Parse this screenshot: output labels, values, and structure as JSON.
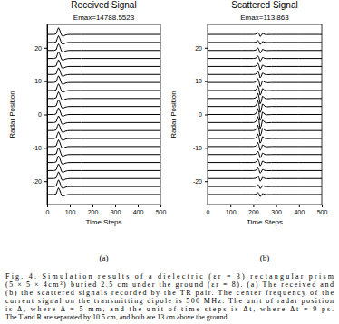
{
  "chart_data": [
    {
      "type": "line",
      "title": "Received Signal",
      "annotation": "Emax=14788.5523",
      "x_label": "Time Steps",
      "y_label": "Radar Position",
      "panel_label": "(a)",
      "color": "#000000",
      "x": [
        0,
        30,
        40,
        45,
        50,
        55,
        60,
        65,
        70,
        75,
        80,
        90,
        100,
        150,
        200,
        300,
        400,
        500
      ],
      "xlim": [
        0,
        500
      ],
      "xticks": [
        0,
        100,
        200,
        300,
        400,
        500
      ],
      "ylim": [
        -27,
        27
      ],
      "yticks": [
        -20,
        -10,
        0,
        10,
        20
      ],
      "series": [
        {
          "position": -24,
          "values": [
            0,
            0,
            0.2,
            1.2,
            2.0,
            1.4,
            0.4,
            -0.4,
            -0.6,
            -0.4,
            -0.2,
            -0.05,
            0,
            0,
            0,
            0,
            0,
            0
          ]
        },
        {
          "position": -21.6,
          "values": [
            0,
            0,
            0.2,
            1.2,
            2.0,
            1.4,
            0.4,
            -0.4,
            -0.6,
            -0.4,
            -0.2,
            -0.05,
            0,
            0,
            0,
            0,
            0,
            0
          ]
        },
        {
          "position": -19.2,
          "values": [
            0,
            0,
            0.2,
            1.2,
            2.0,
            1.4,
            0.4,
            -0.4,
            -0.6,
            -0.4,
            -0.2,
            -0.05,
            0,
            0,
            0,
            0,
            0,
            0
          ]
        },
        {
          "position": -16.8,
          "values": [
            0,
            0,
            0.2,
            1.2,
            2.0,
            1.4,
            0.4,
            -0.4,
            -0.6,
            -0.4,
            -0.2,
            -0.05,
            0,
            0,
            0,
            0,
            0,
            0
          ]
        },
        {
          "position": -14.4,
          "values": [
            0,
            0,
            0.2,
            1.2,
            2.0,
            1.4,
            0.4,
            -0.4,
            -0.6,
            -0.4,
            -0.2,
            -0.05,
            0,
            0,
            0,
            0,
            0,
            0
          ]
        },
        {
          "position": -12,
          "values": [
            0,
            0,
            0.2,
            1.2,
            2.0,
            1.4,
            0.4,
            -0.4,
            -0.6,
            -0.4,
            -0.2,
            -0.05,
            0,
            0,
            0,
            0,
            0,
            0
          ]
        },
        {
          "position": -9.6,
          "values": [
            0,
            0,
            0.2,
            1.2,
            2.0,
            1.4,
            0.4,
            -0.4,
            -0.6,
            -0.4,
            -0.2,
            -0.05,
            0,
            0,
            0,
            0,
            0,
            0
          ]
        },
        {
          "position": -7.2,
          "values": [
            0,
            0,
            0.2,
            1.2,
            2.0,
            1.4,
            0.4,
            -0.4,
            -0.6,
            -0.4,
            -0.2,
            -0.05,
            0,
            0,
            0,
            0,
            0,
            0
          ]
        },
        {
          "position": -4.8,
          "values": [
            0,
            0,
            0.2,
            1.2,
            2.0,
            1.4,
            0.4,
            -0.4,
            -0.6,
            -0.4,
            -0.2,
            -0.05,
            0,
            0,
            0,
            0,
            0,
            0
          ]
        },
        {
          "position": -2.4,
          "values": [
            0,
            0,
            0.2,
            1.2,
            2.0,
            1.4,
            0.4,
            -0.4,
            -0.6,
            -0.4,
            -0.2,
            -0.05,
            0,
            0,
            0,
            0,
            0,
            0
          ]
        },
        {
          "position": 0,
          "values": [
            0,
            0,
            0.2,
            1.2,
            2.0,
            1.4,
            0.4,
            -0.4,
            -0.6,
            -0.4,
            -0.2,
            -0.05,
            0,
            0,
            0,
            0,
            0,
            0
          ]
        },
        {
          "position": 2.4,
          "values": [
            0,
            0,
            0.2,
            1.2,
            2.0,
            1.4,
            0.4,
            -0.4,
            -0.6,
            -0.4,
            -0.2,
            -0.05,
            0,
            0,
            0,
            0,
            0,
            0
          ]
        },
        {
          "position": 4.8,
          "values": [
            0,
            0,
            0.2,
            1.2,
            2.0,
            1.4,
            0.4,
            -0.4,
            -0.6,
            -0.4,
            -0.2,
            -0.05,
            0,
            0,
            0,
            0,
            0,
            0
          ]
        },
        {
          "position": 7.2,
          "values": [
            0,
            0,
            0.2,
            1.2,
            2.0,
            1.4,
            0.4,
            -0.4,
            -0.6,
            -0.4,
            -0.2,
            -0.05,
            0,
            0,
            0,
            0,
            0,
            0
          ]
        },
        {
          "position": 9.6,
          "values": [
            0,
            0,
            0.2,
            1.2,
            2.0,
            1.4,
            0.4,
            -0.4,
            -0.6,
            -0.4,
            -0.2,
            -0.05,
            0,
            0,
            0,
            0,
            0,
            0
          ]
        },
        {
          "position": 12,
          "values": [
            0,
            0,
            0.2,
            1.2,
            2.0,
            1.4,
            0.4,
            -0.4,
            -0.6,
            -0.4,
            -0.2,
            -0.05,
            0,
            0,
            0,
            0,
            0,
            0
          ]
        },
        {
          "position": 14.4,
          "values": [
            0,
            0,
            0.2,
            1.2,
            2.0,
            1.4,
            0.4,
            -0.4,
            -0.6,
            -0.4,
            -0.2,
            -0.05,
            0,
            0,
            0,
            0,
            0,
            0
          ]
        },
        {
          "position": 16.8,
          "values": [
            0,
            0,
            0.2,
            1.2,
            2.0,
            1.4,
            0.4,
            -0.4,
            -0.6,
            -0.4,
            -0.2,
            -0.05,
            0,
            0,
            0,
            0,
            0,
            0
          ]
        },
        {
          "position": 19.2,
          "values": [
            0,
            0,
            0.2,
            1.2,
            2.0,
            1.4,
            0.4,
            -0.4,
            -0.6,
            -0.4,
            -0.2,
            -0.05,
            0,
            0,
            0,
            0,
            0,
            0
          ]
        },
        {
          "position": 21.6,
          "values": [
            0,
            0,
            0.2,
            1.2,
            2.0,
            1.4,
            0.4,
            -0.4,
            -0.6,
            -0.4,
            -0.2,
            -0.05,
            0,
            0,
            0,
            0,
            0,
            0
          ]
        },
        {
          "position": 24,
          "values": [
            0,
            0,
            0.2,
            1.2,
            2.0,
            1.4,
            0.4,
            -0.4,
            -0.6,
            -0.4,
            -0.2,
            -0.05,
            0,
            0,
            0,
            0,
            0,
            0
          ]
        }
      ]
    },
    {
      "type": "line",
      "title": "Scattered Signal",
      "annotation": "Emax=113.863",
      "x_label": "Time Steps",
      "y_label": "Radar Position",
      "panel_label": "(b)",
      "color": "#000000",
      "x": [
        0,
        150,
        200,
        210,
        215,
        220,
        225,
        230,
        235,
        240,
        245,
        250,
        260,
        280,
        300,
        400,
        500
      ],
      "xlim": [
        0,
        500
      ],
      "xticks": [
        0,
        100,
        200,
        300,
        400,
        500
      ],
      "ylim": [
        -27,
        27
      ],
      "yticks": [
        -20,
        -10,
        0,
        10,
        20
      ],
      "series": [
        {
          "position": -24,
          "values": [
            0,
            0,
            0,
            0.06,
            0.24,
            0.6,
            0.18,
            -0.6,
            -0.36,
            0.24,
            0.18,
            0.03,
            -0.03,
            0,
            0,
            0,
            0
          ]
        },
        {
          "position": -21.6,
          "values": [
            0,
            0,
            0,
            0.06,
            0.24,
            0.6,
            0.18,
            -0.6,
            -0.36,
            0.24,
            0.18,
            0.03,
            -0.03,
            0,
            0,
            0,
            0
          ]
        },
        {
          "position": -19.2,
          "values": [
            0,
            0,
            0,
            0.08,
            0.32,
            0.8,
            0.24,
            -0.8,
            -0.48,
            0.32,
            0.24,
            0.04,
            -0.04,
            0,
            0,
            0,
            0
          ]
        },
        {
          "position": -16.8,
          "values": [
            0,
            0,
            0,
            0.08,
            0.32,
            0.8,
            0.24,
            -0.8,
            -0.48,
            0.32,
            0.24,
            0.04,
            -0.04,
            0,
            0,
            0,
            0
          ]
        },
        {
          "position": -14.4,
          "values": [
            0,
            0,
            0,
            0.1,
            0.4,
            1.0,
            0.3,
            -1.0,
            -0.6,
            0.4,
            0.3,
            0.05,
            -0.05,
            0,
            0,
            0,
            0
          ]
        },
        {
          "position": -12,
          "values": [
            0,
            0,
            0,
            0.1,
            0.4,
            1.0,
            0.3,
            -1.0,
            -0.6,
            0.4,
            0.3,
            0.05,
            -0.05,
            0,
            0,
            0,
            0
          ]
        },
        {
          "position": -9.6,
          "values": [
            0,
            0,
            0,
            0.12,
            0.48,
            1.2,
            0.36,
            -1.2,
            -0.72,
            0.48,
            0.36,
            0.06,
            -0.06,
            0,
            0,
            0,
            0
          ]
        },
        {
          "position": -7.2,
          "values": [
            0,
            0,
            0,
            0.14,
            0.56,
            1.4,
            0.42,
            -1.4,
            -0.84,
            0.56,
            0.42,
            0.07,
            -0.07,
            0,
            0,
            0,
            0
          ]
        },
        {
          "position": -4.8,
          "values": [
            0,
            0,
            0,
            0.16,
            0.64,
            1.6,
            0.48,
            -1.6,
            -0.96,
            0.64,
            0.48,
            0.08,
            -0.08,
            0,
            0,
            0,
            0
          ]
        },
        {
          "position": -2.4,
          "values": [
            0,
            0,
            0,
            0.18,
            0.72,
            1.8,
            0.54,
            -1.8,
            -1.08,
            0.72,
            0.54,
            0.09,
            -0.09,
            0,
            0,
            0,
            0
          ]
        },
        {
          "position": 0,
          "values": [
            0,
            0,
            0,
            0.18,
            0.72,
            1.8,
            0.54,
            -1.8,
            -1.08,
            0.72,
            0.54,
            0.09,
            -0.09,
            0,
            0,
            0,
            0
          ]
        },
        {
          "position": 2.4,
          "values": [
            0,
            0,
            0,
            0.18,
            0.72,
            1.8,
            0.54,
            -1.8,
            -1.08,
            0.72,
            0.54,
            0.09,
            -0.09,
            0,
            0,
            0,
            0
          ]
        },
        {
          "position": 4.8,
          "values": [
            0,
            0,
            0,
            0.16,
            0.64,
            1.6,
            0.48,
            -1.6,
            -0.96,
            0.64,
            0.48,
            0.08,
            -0.08,
            0,
            0,
            0,
            0
          ]
        },
        {
          "position": 7.2,
          "values": [
            0,
            0,
            0,
            0.14,
            0.56,
            1.4,
            0.42,
            -1.4,
            -0.84,
            0.56,
            0.42,
            0.07,
            -0.07,
            0,
            0,
            0,
            0
          ]
        },
        {
          "position": 9.6,
          "values": [
            0,
            0,
            0,
            0.12,
            0.48,
            1.2,
            0.36,
            -1.2,
            -0.72,
            0.48,
            0.36,
            0.06,
            -0.06,
            0,
            0,
            0,
            0
          ]
        },
        {
          "position": 12,
          "values": [
            0,
            0,
            0,
            0.1,
            0.4,
            1.0,
            0.3,
            -1.0,
            -0.6,
            0.4,
            0.3,
            0.05,
            -0.05,
            0,
            0,
            0,
            0
          ]
        },
        {
          "position": 14.4,
          "values": [
            0,
            0,
            0,
            0.1,
            0.4,
            1.0,
            0.3,
            -1.0,
            -0.6,
            0.4,
            0.3,
            0.05,
            -0.05,
            0,
            0,
            0,
            0
          ]
        },
        {
          "position": 16.8,
          "values": [
            0,
            0,
            0,
            0.08,
            0.32,
            0.8,
            0.24,
            -0.8,
            -0.48,
            0.32,
            0.24,
            0.04,
            -0.04,
            0,
            0,
            0,
            0
          ]
        },
        {
          "position": 19.2,
          "values": [
            0,
            0,
            0,
            0.08,
            0.32,
            0.8,
            0.24,
            -0.8,
            -0.48,
            0.32,
            0.24,
            0.04,
            -0.04,
            0,
            0,
            0,
            0
          ]
        },
        {
          "position": 21.6,
          "values": [
            0,
            0,
            0,
            0.06,
            0.24,
            0.6,
            0.18,
            -0.6,
            -0.36,
            0.24,
            0.18,
            0.03,
            -0.03,
            0,
            0,
            0,
            0
          ]
        },
        {
          "position": 24,
          "values": [
            0,
            0,
            0,
            0.06,
            0.24,
            0.6,
            0.18,
            -0.6,
            -0.36,
            0.24,
            0.18,
            0.03,
            -0.03,
            0,
            0,
            0,
            0
          ]
        }
      ]
    }
  ],
  "caption": [
    "Fig. 4.   Simulation results of a dielectric (εr = 3) rectangular prism",
    "(5 × 5 × 4cm³) buried 2.5 cm under the ground (εr = 8). (a) The received and",
    "(b) the scattered signals recorded by the TR pair. The center frequency of the",
    "current signal on the transmitting dipole is 500 MHz. The unit of radar position",
    "is Δ, where Δ = 5 mm, and the unit of time steps is Δt, where Δt = 9 ps.",
    "The T and R are separated by 10.5 cm, and both are 13 cm above the ground."
  ]
}
